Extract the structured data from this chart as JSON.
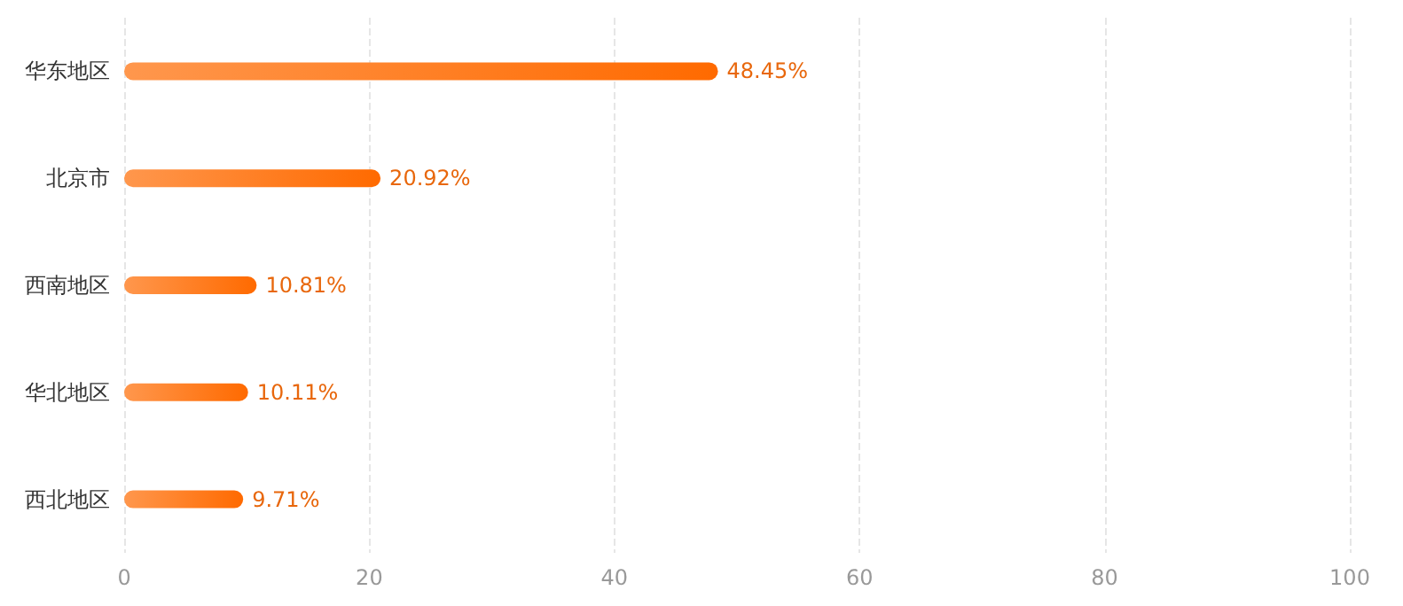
{
  "chart_data": {
    "type": "bar",
    "orientation": "horizontal",
    "categories": [
      "华东地区",
      "北京市",
      "西南地区",
      "华北地区",
      "西北地区"
    ],
    "values": [
      48.45,
      20.92,
      10.81,
      10.11,
      9.71
    ],
    "value_labels": [
      "48.45%",
      "20.92%",
      "10.81%",
      "10.11%",
      "9.71%"
    ],
    "color": "#ff6a00",
    "xlim": [
      0,
      100
    ],
    "xticks": [
      0,
      20,
      40,
      60,
      80,
      100
    ],
    "grid": "x"
  }
}
